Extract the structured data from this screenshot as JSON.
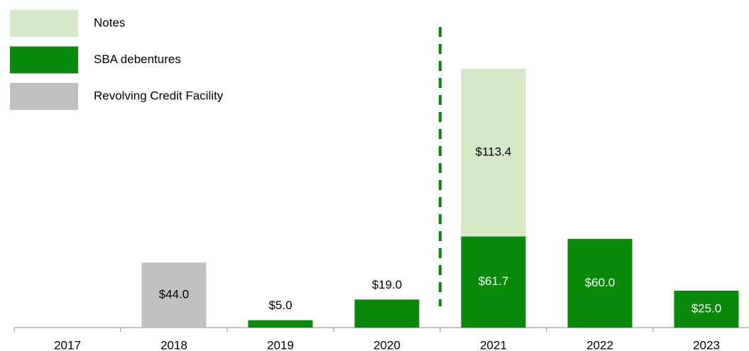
{
  "chart_data": {
    "type": "stacked_bar",
    "categories": [
      "2017",
      "2018",
      "2019",
      "2020",
      "2021",
      "2022",
      "2023"
    ],
    "series": [
      {
        "name": "Notes",
        "color": "#d5e8c8",
        "values": [
          null,
          null,
          null,
          null,
          113.4,
          null,
          null
        ],
        "value_labels": [
          null,
          null,
          null,
          null,
          "$113.4",
          null,
          null
        ]
      },
      {
        "name": "SBA debentures",
        "color": "#0a8a0a",
        "values": [
          null,
          null,
          5.0,
          19.0,
          61.7,
          60.0,
          25.0
        ],
        "value_labels": [
          null,
          null,
          "$5.0",
          "$19.0",
          "$61.7",
          "$60.0",
          "$25.0"
        ]
      },
      {
        "name": "Revolving Credit Facility",
        "color": "#c0c0c0",
        "values": [
          null,
          44.0,
          null,
          null,
          null,
          null,
          null
        ],
        "value_labels": [
          null,
          "$44.0",
          null,
          null,
          null,
          null,
          null
        ]
      }
    ]
  }
}
